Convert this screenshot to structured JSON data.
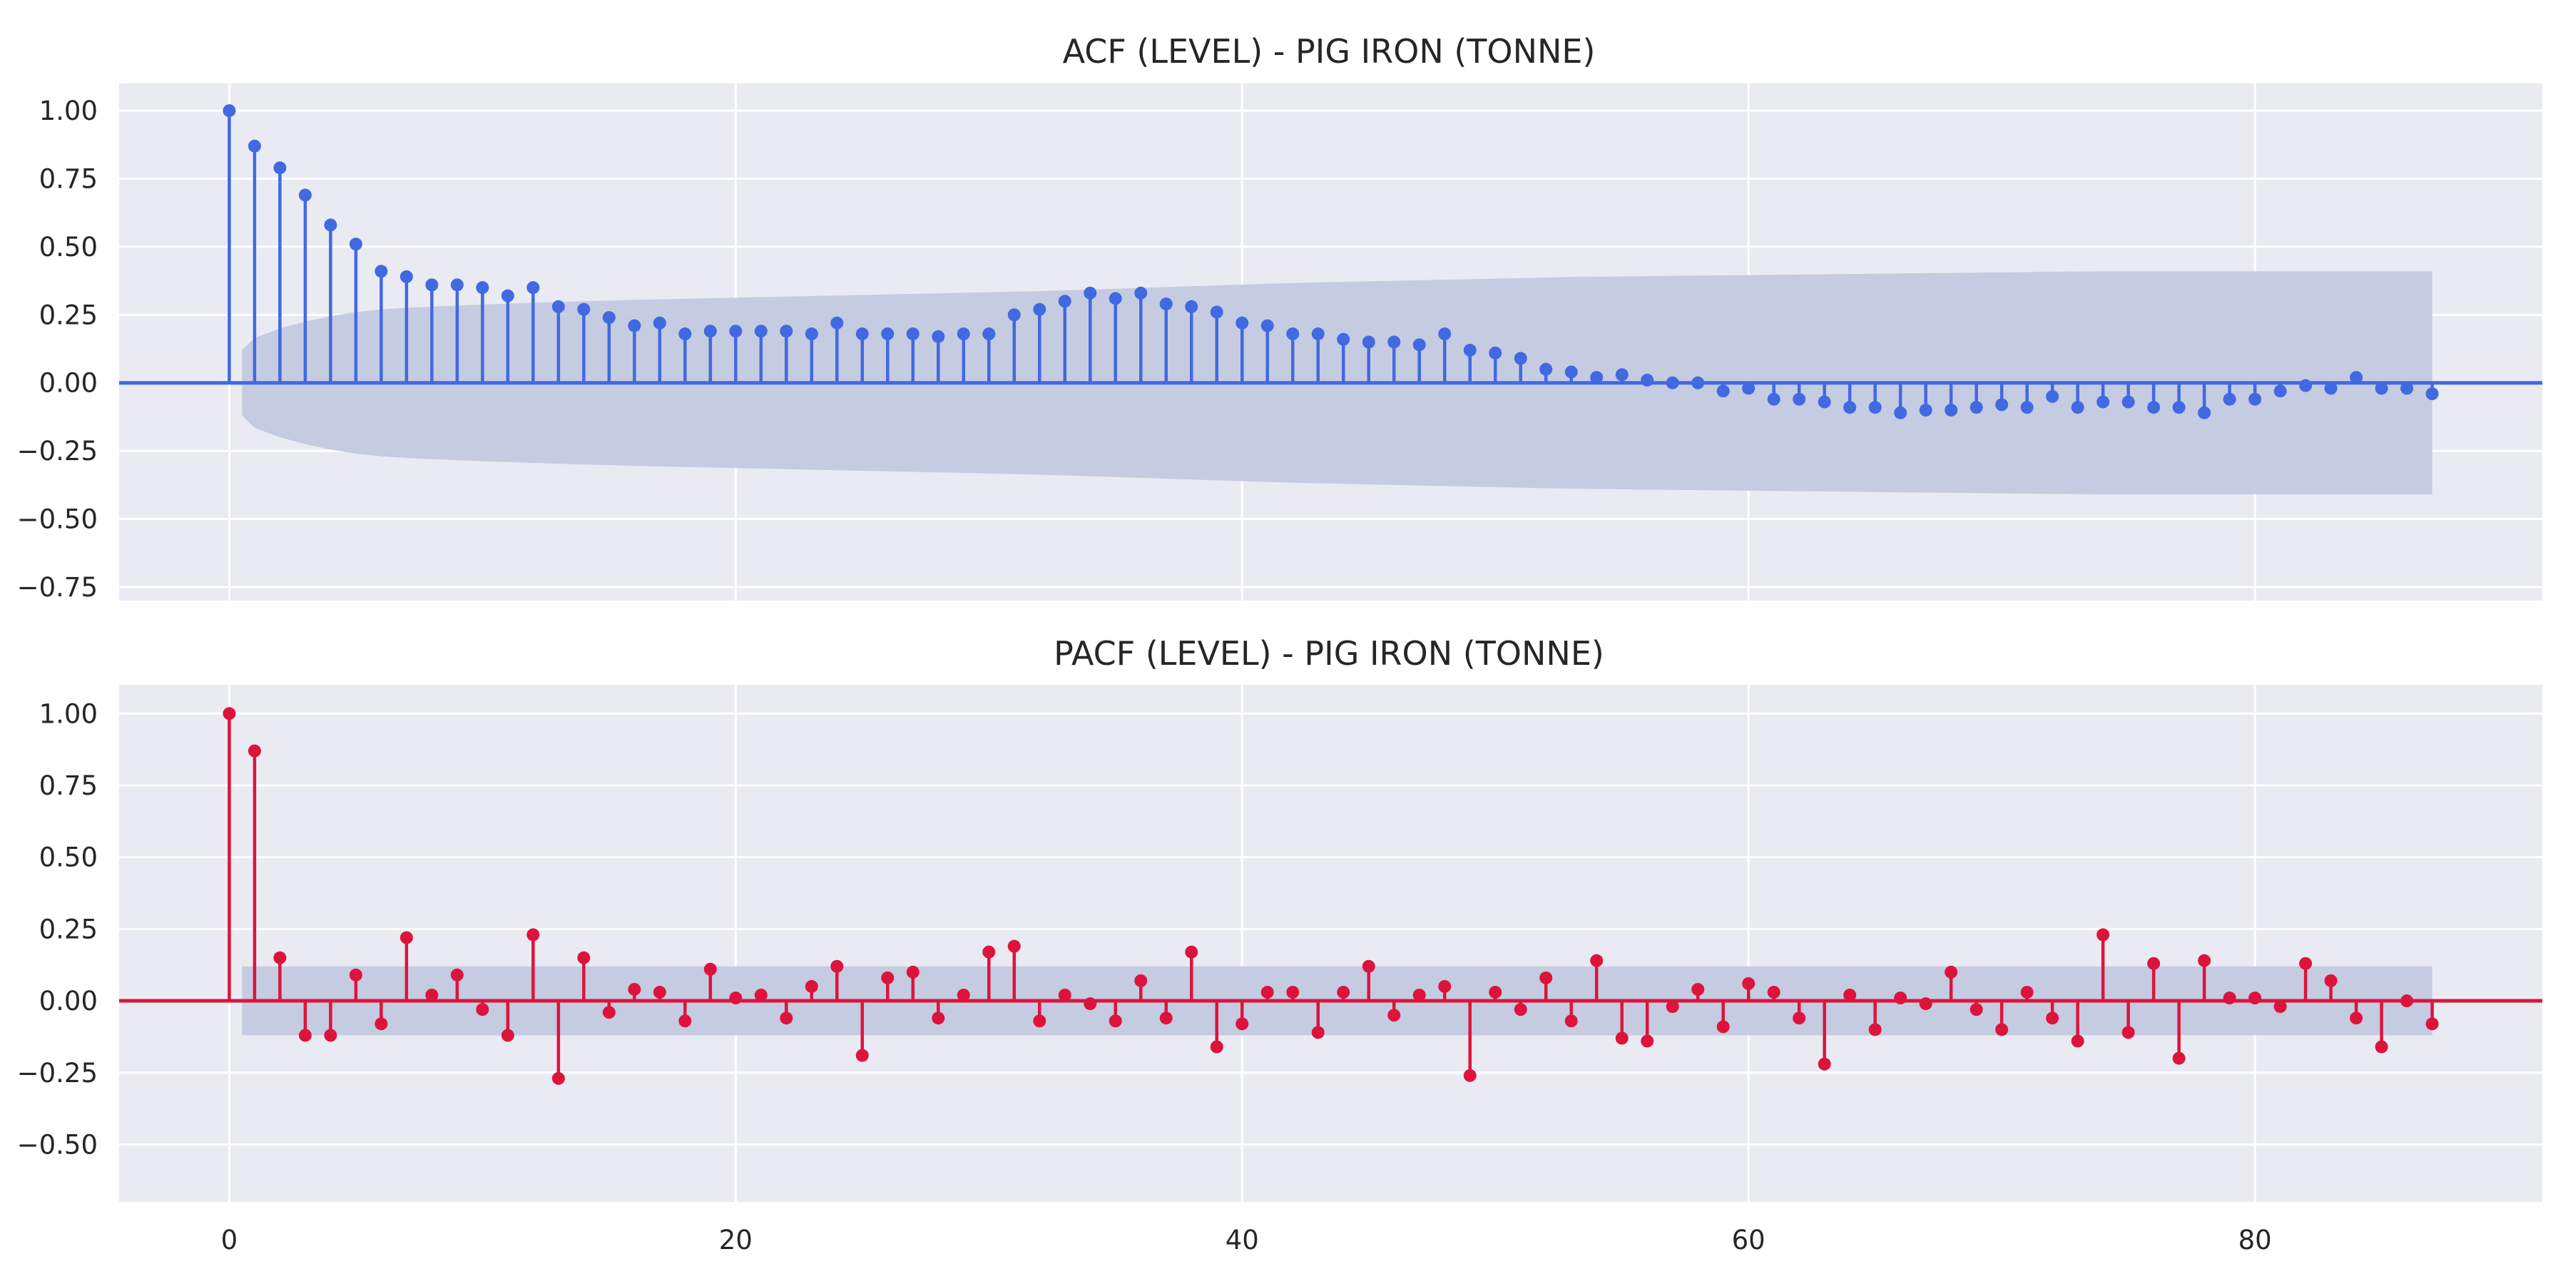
{
  "chart_data": [
    {
      "type": "stem",
      "title": "ACF (LEVEL) - PIG IRON (TONNE)",
      "color": "#4169E1",
      "band_color": "#c3c9df",
      "background": "#eaeaf2",
      "xlim": [
        -4.35,
        91.35
      ],
      "ylim": [
        -0.8,
        1.1
      ],
      "x_ticks": [
        0,
        20,
        40,
        60,
        80
      ],
      "x_ticks_labels_shown": false,
      "y_ticks": [
        -0.75,
        -0.5,
        -0.25,
        0.0,
        0.25,
        0.5,
        0.75,
        1.0
      ],
      "y_tick_labels": [
        "−0.75",
        "−0.50",
        "−0.25",
        "0.00",
        "0.25",
        "0.50",
        "0.75",
        "1.00"
      ],
      "lags": [
        0,
        1,
        2,
        3,
        4,
        5,
        6,
        7,
        8,
        9,
        10,
        11,
        12,
        13,
        14,
        15,
        16,
        17,
        18,
        19,
        20,
        21,
        22,
        23,
        24,
        25,
        26,
        27,
        28,
        29,
        30,
        31,
        32,
        33,
        34,
        35,
        36,
        37,
        38,
        39,
        40,
        41,
        42,
        43,
        44,
        45,
        46,
        47,
        48,
        49,
        50,
        51,
        52,
        53,
        54,
        55,
        56,
        57,
        58,
        59,
        60,
        61,
        62,
        63,
        64,
        65,
        66,
        67,
        68,
        69,
        70,
        71,
        72,
        73,
        74,
        75,
        76,
        77,
        78,
        79,
        80,
        81,
        82,
        83,
        84,
        85,
        86,
        87
      ],
      "values": [
        1.0,
        0.87,
        0.79,
        0.69,
        0.58,
        0.51,
        0.41,
        0.39,
        0.36,
        0.36,
        0.35,
        0.32,
        0.35,
        0.28,
        0.27,
        0.24,
        0.21,
        0.22,
        0.18,
        0.19,
        0.19,
        0.19,
        0.19,
        0.18,
        0.22,
        0.18,
        0.18,
        0.18,
        0.17,
        0.18,
        0.18,
        0.25,
        0.27,
        0.3,
        0.33,
        0.31,
        0.33,
        0.29,
        0.28,
        0.26,
        0.22,
        0.21,
        0.18,
        0.18,
        0.16,
        0.15,
        0.15,
        0.14,
        0.18,
        0.12,
        0.11,
        0.09,
        0.05,
        0.04,
        0.02,
        0.03,
        0.01,
        0.0,
        0.0,
        -0.03,
        -0.02,
        -0.06,
        -0.06,
        -0.07,
        -0.09,
        -0.09,
        -0.11,
        -0.1,
        -0.1,
        -0.09,
        -0.08,
        -0.09,
        -0.05,
        -0.09,
        -0.07,
        -0.07,
        -0.09,
        -0.09,
        -0.11,
        -0.06,
        -0.06,
        -0.03,
        -0.01,
        -0.02,
        0.02,
        -0.02,
        -0.02,
        -0.04
      ],
      "confint": [
        0.12,
        0.165,
        0.2,
        0.225,
        0.245,
        0.26,
        0.27,
        0.276,
        0.28,
        0.284,
        0.288,
        0.291,
        0.294,
        0.297,
        0.3,
        0.302,
        0.305,
        0.307,
        0.309,
        0.311,
        0.313,
        0.315,
        0.317,
        0.319,
        0.321,
        0.323,
        0.325,
        0.327,
        0.329,
        0.331,
        0.333,
        0.335,
        0.337,
        0.34,
        0.343,
        0.346,
        0.349,
        0.352,
        0.355,
        0.358,
        0.361,
        0.364,
        0.367,
        0.369,
        0.371,
        0.373,
        0.375,
        0.377,
        0.379,
        0.381,
        0.383,
        0.385,
        0.387,
        0.389,
        0.39,
        0.391,
        0.392,
        0.393,
        0.394,
        0.395,
        0.396,
        0.397,
        0.398,
        0.399,
        0.4,
        0.401,
        0.402,
        0.403,
        0.404,
        0.405,
        0.406,
        0.407,
        0.408,
        0.409,
        0.41,
        0.41,
        0.41,
        0.41,
        0.41,
        0.41,
        0.41,
        0.41,
        0.41,
        0.41,
        0.41,
        0.41,
        0.41,
        0.41
      ],
      "grid": true
    },
    {
      "type": "stem",
      "title": "PACF (LEVEL) - PIG IRON (TONNE)",
      "color": "#DC143C",
      "band_color": "#c3c9df",
      "background": "#eaeaf2",
      "xlim": [
        -4.35,
        91.35
      ],
      "ylim": [
        -0.7,
        1.1
      ],
      "x_ticks": [
        0,
        20,
        40,
        60,
        80
      ],
      "x_tick_labels": [
        "0",
        "20",
        "40",
        "60",
        "80"
      ],
      "y_ticks": [
        -0.5,
        -0.25,
        0.0,
        0.25,
        0.5,
        0.75,
        1.0
      ],
      "y_tick_labels": [
        "−0.50",
        "−0.25",
        "0.00",
        "0.25",
        "0.50",
        "0.75",
        "1.00"
      ],
      "lags": [
        0,
        1,
        2,
        3,
        4,
        5,
        6,
        7,
        8,
        9,
        10,
        11,
        12,
        13,
        14,
        15,
        16,
        17,
        18,
        19,
        20,
        21,
        22,
        23,
        24,
        25,
        26,
        27,
        28,
        29,
        30,
        31,
        32,
        33,
        34,
        35,
        36,
        37,
        38,
        39,
        40,
        41,
        42,
        43,
        44,
        45,
        46,
        47,
        48,
        49,
        50,
        51,
        52,
        53,
        54,
        55,
        56,
        57,
        58,
        59,
        60,
        61,
        62,
        63,
        64,
        65,
        66,
        67,
        68,
        69,
        70,
        71,
        72,
        73,
        74,
        75,
        76,
        77,
        78,
        79,
        80,
        81,
        82,
        83,
        84,
        85,
        86,
        87
      ],
      "values": [
        1.0,
        0.87,
        0.15,
        -0.12,
        -0.12,
        0.09,
        -0.08,
        0.22,
        0.02,
        0.09,
        -0.03,
        -0.12,
        0.23,
        -0.27,
        0.15,
        -0.04,
        0.04,
        0.03,
        -0.07,
        0.11,
        0.01,
        0.02,
        -0.06,
        0.05,
        0.12,
        -0.19,
        0.08,
        0.1,
        -0.06,
        0.02,
        0.17,
        0.19,
        -0.07,
        0.02,
        -0.01,
        -0.07,
        0.07,
        -0.06,
        0.17,
        -0.16,
        -0.08,
        0.03,
        0.03,
        -0.11,
        0.03,
        0.12,
        -0.05,
        0.02,
        0.05,
        -0.26,
        0.03,
        -0.03,
        0.08,
        -0.07,
        0.14,
        -0.13,
        -0.14,
        -0.02,
        0.04,
        -0.09,
        0.06,
        0.03,
        -0.06,
        -0.22,
        0.02,
        -0.1,
        0.01,
        -0.01,
        0.1,
        -0.03,
        -0.1,
        0.03,
        -0.06,
        -0.14,
        0.23,
        -0.11,
        0.13,
        -0.2,
        0.14,
        0.01,
        0.01,
        -0.02,
        0.13,
        0.07,
        -0.06,
        -0.16,
        0.0,
        -0.08
      ],
      "confint": 0.12,
      "grid": true
    }
  ]
}
